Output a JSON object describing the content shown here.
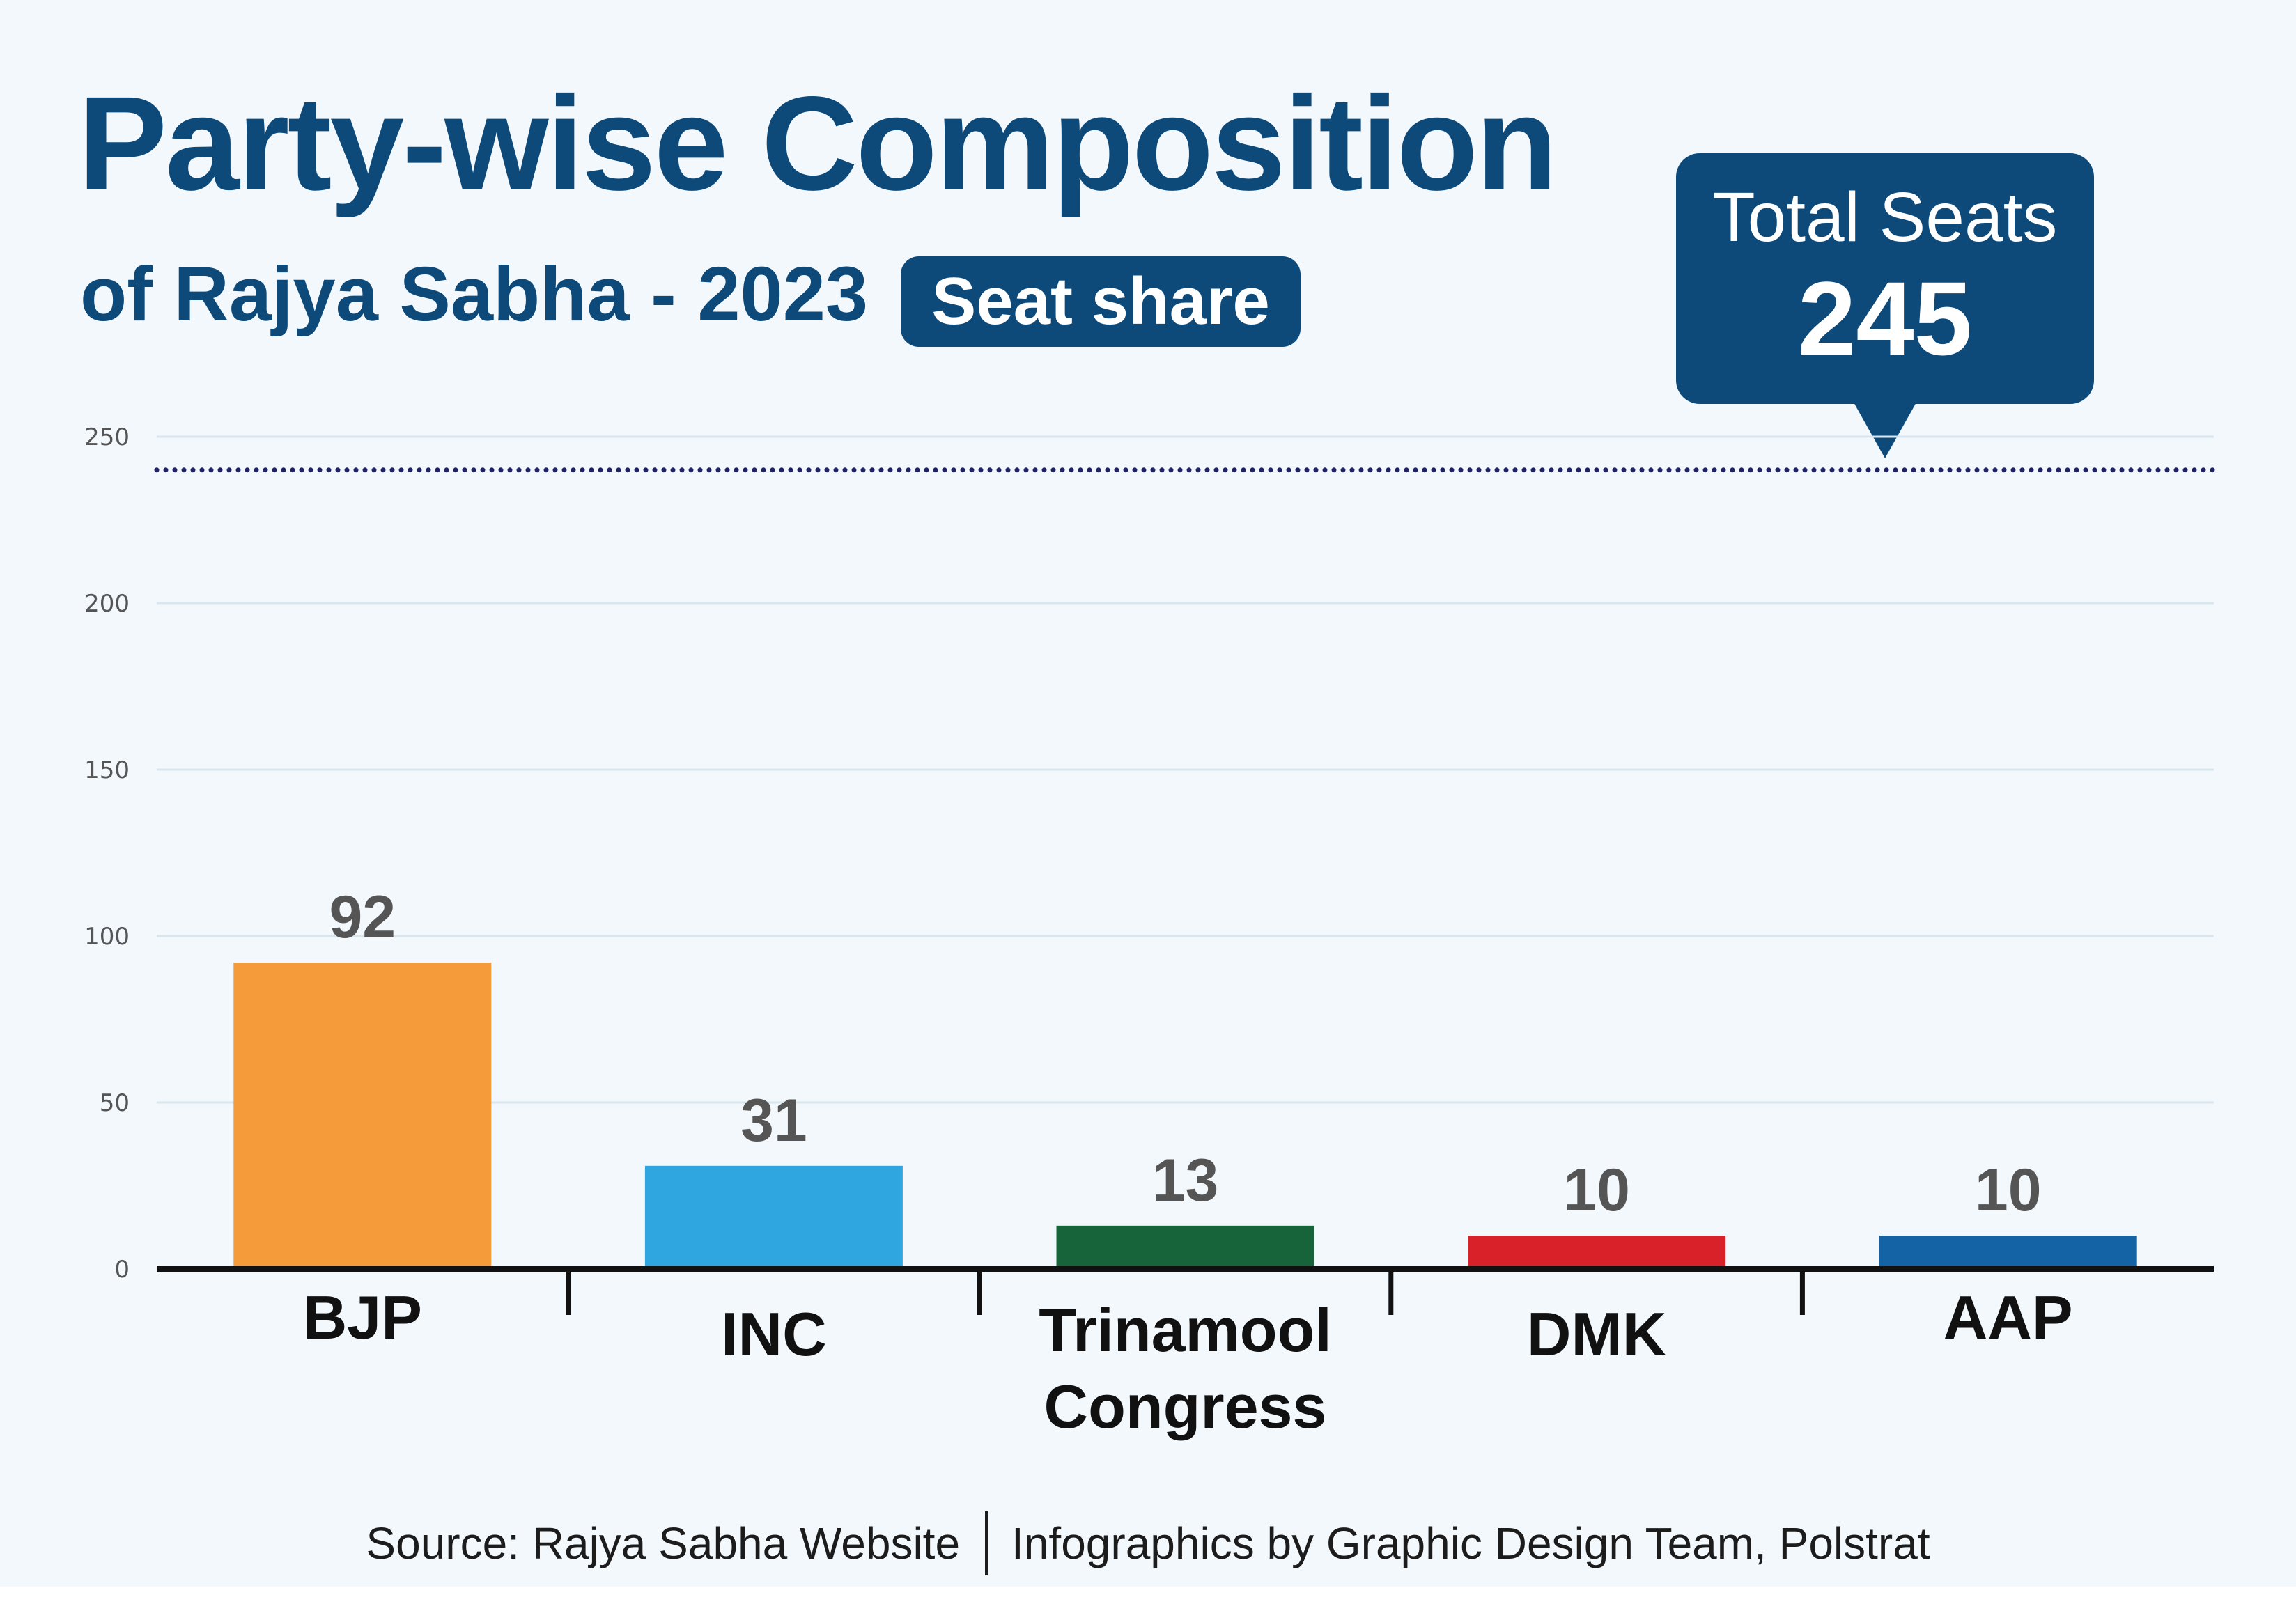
{
  "header": {
    "title": "Party-wise Composition",
    "subtitle": "of Rajya Sabha - 2023",
    "badge": "Seat share"
  },
  "total": {
    "label": "Total Seats",
    "value": "245"
  },
  "footer": {
    "source": "Source: Rajya Sabha Website",
    "credit": "Infographics by Graphic Design Team, Polstrat"
  },
  "chart_data": {
    "type": "bar",
    "title": "Party-wise Composition of Rajya Sabha - 2023",
    "subtitle": "Seat share",
    "xlabel": "",
    "ylabel": "",
    "categories": [
      [
        "BJP"
      ],
      [
        "INC"
      ],
      [
        "Trinamool",
        "Congress"
      ],
      [
        "DMK"
      ],
      [
        "AAP"
      ]
    ],
    "values": [
      92,
      31,
      13,
      10,
      10
    ],
    "colors": [
      "#f59b3a",
      "#2fa6df",
      "#17643a",
      "#d82128",
      "#1464a5"
    ],
    "ylim": [
      0,
      250
    ],
    "yticks": [
      0,
      50,
      100,
      150,
      200,
      250
    ],
    "reference_line": {
      "value": 240,
      "style": "dotted",
      "color": "#1f2266"
    },
    "grid": true,
    "legend": "none"
  }
}
